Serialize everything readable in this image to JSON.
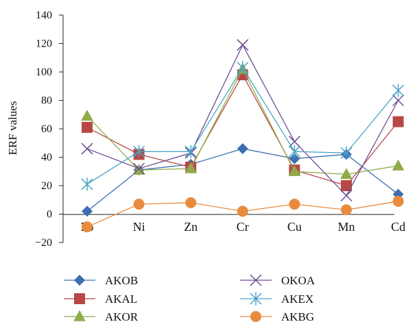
{
  "chart_data": {
    "type": "line",
    "title": "",
    "xlabel": "",
    "ylabel": "ERF values",
    "ylim": [
      -20,
      140
    ],
    "yticks": [
      -20,
      0,
      20,
      40,
      60,
      80,
      100,
      120,
      140
    ],
    "ytick_labels": [
      "−20",
      "0",
      "20",
      "40",
      "60",
      "80",
      "100",
      "120",
      "140"
    ],
    "categories": [
      "Pb",
      "Ni",
      "Zn",
      "Cr",
      "Cu",
      "Mn",
      "Cd"
    ],
    "grid": false,
    "legend": "bottom",
    "series": [
      {
        "name": "AKOB",
        "color": "#3d6fb0",
        "marker": "diamond",
        "values": [
          2,
          31,
          35,
          46,
          39,
          42,
          14
        ]
      },
      {
        "name": "AKAL",
        "color": "#b84845",
        "marker": "square",
        "values": [
          61,
          42,
          33,
          98,
          31,
          20,
          65
        ]
      },
      {
        "name": "AKOR",
        "color": "#8fac4a",
        "marker": "triangle",
        "values": [
          69,
          31,
          32,
          102,
          30,
          28,
          34
        ]
      },
      {
        "name": "OKOA",
        "color": "#6c4c92",
        "marker": "x",
        "values": [
          46,
          32,
          43,
          119,
          51,
          13,
          80
        ]
      },
      {
        "name": "AKEX",
        "color": "#4aa3c2",
        "marker": "star",
        "values": [
          21,
          44,
          44,
          103,
          44,
          43,
          87
        ]
      },
      {
        "name": "AKBG",
        "color": "#e98b3e",
        "marker": "circle",
        "values": [
          -9,
          7,
          8,
          2,
          7,
          3,
          9
        ]
      }
    ]
  }
}
